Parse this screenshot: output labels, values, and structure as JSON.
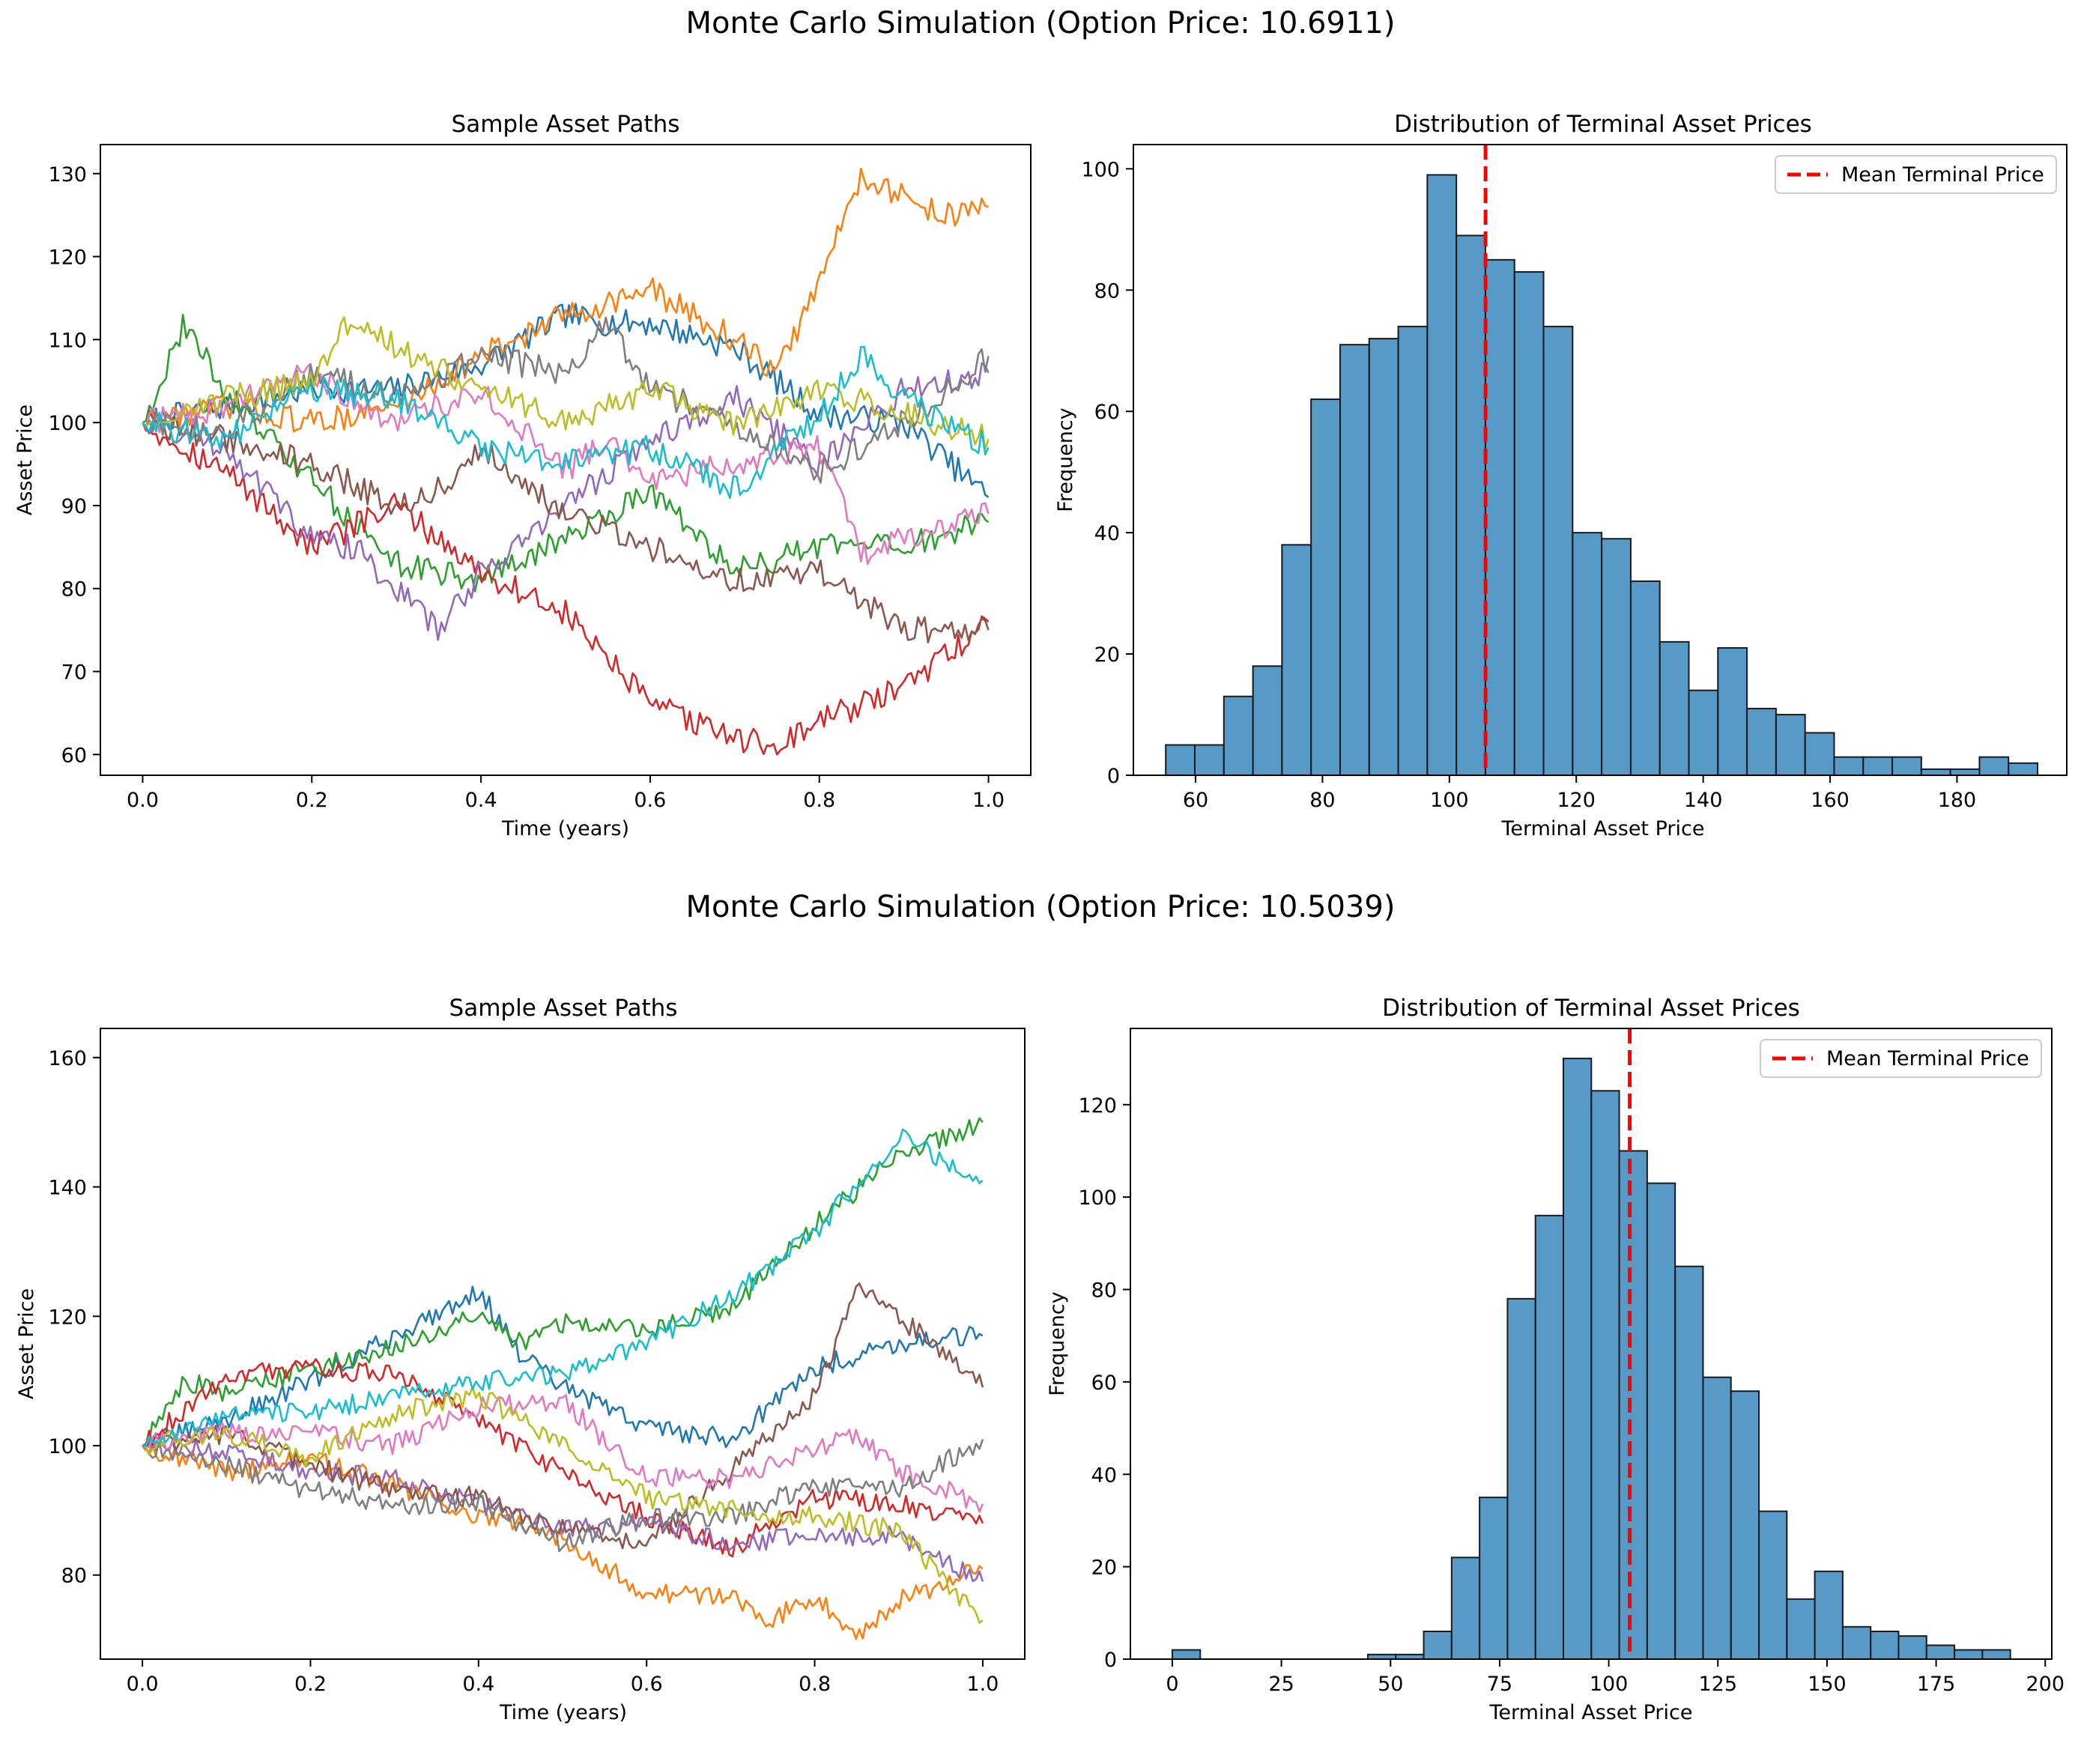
{
  "figures": [
    {
      "suptitle": "Monte Carlo Simulation (Option Price: 10.6911)",
      "paths_chart": {
        "title": "Sample Asset Paths",
        "xlabel": "Time (years)",
        "ylabel": "Asset Price",
        "xticks": [
          "0.0",
          "0.2",
          "0.4",
          "0.6",
          "0.8",
          "1.0"
        ],
        "yticks": [
          "60",
          "70",
          "80",
          "90",
          "100",
          "110",
          "120",
          "130"
        ]
      },
      "hist_chart": {
        "title": "Distribution of Terminal Asset Prices",
        "xlabel": "Terminal Asset Price",
        "ylabel": "Frequency",
        "xticks": [
          "60",
          "80",
          "100",
          "120",
          "140",
          "160",
          "180"
        ],
        "yticks": [
          "0",
          "20",
          "40",
          "60",
          "80",
          "100"
        ],
        "legend_label": "Mean Terminal Price"
      }
    },
    {
      "suptitle": "Monte Carlo Simulation (Option Price: 10.5039)",
      "paths_chart": {
        "title": "Sample Asset Paths",
        "xlabel": "Time (years)",
        "ylabel": "Asset Price",
        "xticks": [
          "0.0",
          "0.2",
          "0.4",
          "0.6",
          "0.8",
          "1.0"
        ],
        "yticks": [
          "80",
          "100",
          "120",
          "140",
          "160"
        ]
      },
      "hist_chart": {
        "title": "Distribution of Terminal Asset Prices",
        "xlabel": "Terminal Asset Price",
        "ylabel": "Frequency",
        "xticks": [
          "0",
          "25",
          "50",
          "75",
          "100",
          "125",
          "150",
          "175",
          "200"
        ],
        "yticks": [
          "0",
          "20",
          "40",
          "60",
          "80",
          "100",
          "120"
        ],
        "legend_label": "Mean Terminal Price"
      }
    }
  ],
  "chart_data": [
    {
      "type": "line",
      "title": "Sample Asset Paths",
      "xlabel": "Time (years)",
      "ylabel": "Asset Price",
      "xlim": [
        -0.05,
        1.05
      ],
      "ylim": [
        57.5,
        133.5
      ],
      "grid": false,
      "colors": [
        "#1f77b4",
        "#ff7f0e",
        "#2ca02c",
        "#d62728",
        "#9467bd",
        "#8c564b",
        "#e377c2",
        "#7f7f7f",
        "#bcbd22",
        "#17becf"
      ],
      "series": [
        {
          "x": [
            0,
            0.1,
            0.2,
            0.3,
            0.4,
            0.5,
            0.55,
            0.6,
            0.7,
            0.8,
            0.9,
            1.0
          ],
          "values": [
            100,
            102,
            104,
            104,
            107,
            113,
            112,
            112,
            109,
            101,
            100,
            91
          ]
        },
        {
          "x": [
            0,
            0.1,
            0.2,
            0.3,
            0.4,
            0.5,
            0.6,
            0.7,
            0.75,
            0.8,
            0.85,
            0.9,
            0.95,
            1.0
          ],
          "values": [
            100,
            102,
            100,
            102,
            108,
            113,
            116,
            110,
            106,
            117,
            130,
            127,
            125,
            126
          ]
        },
        {
          "x": [
            0,
            0.05,
            0.1,
            0.2,
            0.3,
            0.4,
            0.5,
            0.6,
            0.7,
            0.8,
            0.9,
            1.0
          ],
          "values": [
            100,
            112,
            103,
            93,
            83,
            81,
            86,
            92,
            82,
            85,
            85,
            88
          ]
        },
        {
          "x": [
            0,
            0.1,
            0.2,
            0.3,
            0.4,
            0.5,
            0.6,
            0.7,
            0.75,
            0.8,
            0.9,
            1.0
          ],
          "values": [
            100,
            94,
            85,
            90,
            82,
            77,
            66,
            62,
            61,
            64,
            68,
            76
          ]
        },
        {
          "x": [
            0,
            0.1,
            0.2,
            0.25,
            0.3,
            0.35,
            0.4,
            0.5,
            0.6,
            0.7,
            0.8,
            0.9,
            1.0
          ],
          "values": [
            100,
            97,
            86,
            85,
            80,
            75,
            82,
            90,
            98,
            103,
            95,
            104,
            106
          ]
        },
        {
          "x": [
            0,
            0.1,
            0.2,
            0.3,
            0.35,
            0.4,
            0.5,
            0.6,
            0.7,
            0.8,
            0.9,
            1.0
          ],
          "values": [
            100,
            98,
            95,
            90,
            92,
            97,
            89,
            85,
            81,
            82,
            75,
            75
          ]
        },
        {
          "x": [
            0,
            0.1,
            0.2,
            0.3,
            0.4,
            0.5,
            0.55,
            0.6,
            0.7,
            0.8,
            0.85,
            0.9,
            1.0
          ],
          "values": [
            100,
            102,
            106,
            100,
            104,
            94,
            98,
            93,
            95,
            97,
            84,
            86,
            89
          ]
        },
        {
          "x": [
            0,
            0.1,
            0.2,
            0.3,
            0.4,
            0.5,
            0.55,
            0.6,
            0.7,
            0.8,
            0.9,
            1.0
          ],
          "values": [
            100,
            99,
            106,
            103,
            108,
            106,
            112,
            104,
            100,
            94,
            100,
            108
          ]
        },
        {
          "x": [
            0,
            0.1,
            0.2,
            0.25,
            0.3,
            0.4,
            0.5,
            0.6,
            0.7,
            0.8,
            0.9,
            1.0
          ],
          "values": [
            100,
            103,
            105,
            113,
            109,
            104,
            100,
            104,
            100,
            104,
            101,
            98
          ]
        },
        {
          "x": [
            0,
            0.1,
            0.2,
            0.3,
            0.4,
            0.5,
            0.6,
            0.7,
            0.8,
            0.85,
            0.9,
            1.0
          ],
          "values": [
            100,
            98,
            104,
            103,
            97,
            95,
            97,
            92,
            101,
            108,
            103,
            97
          ]
        }
      ]
    },
    {
      "type": "bar",
      "title": "Distribution of Terminal Asset Prices",
      "xlabel": "Terminal Asset Price",
      "ylabel": "Frequency",
      "xlim": [
        50.2,
        197.3
      ],
      "ylim": [
        0,
        104
      ],
      "bin_start": 55.3,
      "bin_width": 4.58,
      "values": [
        5,
        5,
        13,
        18,
        38,
        62,
        71,
        72,
        74,
        99,
        89,
        85,
        83,
        74,
        40,
        39,
        32,
        22,
        14,
        21,
        11,
        10,
        7,
        3,
        3,
        3,
        1,
        1,
        3,
        2
      ],
      "bar_color": "#1f77b4",
      "mean_line": 105.7,
      "mean_line_color": "#ff0000",
      "legend": [
        "Mean Terminal Price"
      ],
      "legend_position": "top-right"
    },
    {
      "type": "line",
      "title": "Sample Asset Paths",
      "xlabel": "Time (years)",
      "ylabel": "Asset Price",
      "xlim": [
        -0.05,
        1.05
      ],
      "ylim": [
        67,
        164.5
      ],
      "grid": false,
      "colors": [
        "#1f77b4",
        "#ff7f0e",
        "#2ca02c",
        "#d62728",
        "#9467bd",
        "#8c564b",
        "#e377c2",
        "#7f7f7f",
        "#bcbd22",
        "#17becf"
      ],
      "series": [
        {
          "x": [
            0,
            0.1,
            0.2,
            0.3,
            0.4,
            0.45,
            0.5,
            0.6,
            0.7,
            0.8,
            0.9,
            1.0
          ],
          "values": [
            100,
            104,
            110,
            117,
            124,
            114,
            109,
            103,
            101,
            112,
            116,
            117
          ]
        },
        {
          "x": [
            0,
            0.1,
            0.2,
            0.3,
            0.4,
            0.5,
            0.6,
            0.7,
            0.75,
            0.8,
            0.85,
            0.9,
            1.0
          ],
          "values": [
            100,
            96,
            98,
            94,
            89,
            86,
            77,
            77,
            73,
            77,
            71,
            76,
            81
          ]
        },
        {
          "x": [
            0,
            0.05,
            0.1,
            0.2,
            0.3,
            0.4,
            0.45,
            0.5,
            0.6,
            0.7,
            0.8,
            0.9,
            1.0
          ],
          "values": [
            100,
            110,
            108,
            112,
            115,
            120,
            116,
            119,
            118,
            121,
            134,
            145,
            150
          ]
        },
        {
          "x": [
            0,
            0.1,
            0.2,
            0.3,
            0.4,
            0.5,
            0.6,
            0.7,
            0.8,
            0.9,
            1.0
          ],
          "values": [
            100,
            111,
            112,
            111,
            104,
            96,
            89,
            84,
            92,
            91,
            88
          ]
        },
        {
          "x": [
            0,
            0.1,
            0.2,
            0.3,
            0.4,
            0.5,
            0.6,
            0.7,
            0.8,
            0.9,
            1.0
          ],
          "values": [
            100,
            99,
            96,
            95,
            91,
            87,
            88,
            85,
            86,
            86,
            79
          ]
        },
        {
          "x": [
            0,
            0.1,
            0.2,
            0.3,
            0.4,
            0.5,
            0.6,
            0.7,
            0.8,
            0.85,
            0.9,
            1.0
          ],
          "values": [
            100,
            102,
            97,
            93,
            92,
            87,
            85,
            96,
            108,
            124,
            120,
            109
          ]
        },
        {
          "x": [
            0,
            0.1,
            0.2,
            0.3,
            0.4,
            0.5,
            0.6,
            0.7,
            0.8,
            0.85,
            0.9,
            1.0
          ],
          "values": [
            100,
            102,
            102,
            100,
            106,
            107,
            95,
            95,
            99,
            102,
            96,
            91
          ]
        },
        {
          "x": [
            0,
            0.1,
            0.2,
            0.3,
            0.4,
            0.5,
            0.6,
            0.7,
            0.8,
            0.9,
            1.0
          ],
          "values": [
            100,
            97,
            93,
            91,
            91,
            85,
            89,
            89,
            94,
            93,
            101
          ]
        },
        {
          "x": [
            0,
            0.1,
            0.2,
            0.3,
            0.4,
            0.5,
            0.6,
            0.7,
            0.8,
            0.9,
            1.0
          ],
          "values": [
            100,
            102,
            98,
            105,
            108,
            100,
            92,
            90,
            89,
            87,
            73
          ]
        },
        {
          "x": [
            0,
            0.1,
            0.2,
            0.3,
            0.4,
            0.5,
            0.6,
            0.7,
            0.8,
            0.9,
            1.0
          ],
          "values": [
            100,
            105,
            105,
            108,
            110,
            111,
            116,
            123,
            133,
            148,
            141
          ]
        }
      ]
    },
    {
      "type": "bar",
      "title": "Distribution of Terminal Asset Prices",
      "xlabel": "Terminal Asset Price",
      "ylabel": "Frequency",
      "xlim": [
        -9.6,
        201.5
      ],
      "ylim": [
        0,
        136.5
      ],
      "bin_start": 0.0,
      "bin_width": 6.4,
      "values": [
        2,
        0,
        0,
        0,
        0,
        0,
        0,
        1,
        1,
        6,
        22,
        35,
        78,
        96,
        130,
        123,
        110,
        103,
        85,
        61,
        58,
        32,
        13,
        19,
        7,
        6,
        5,
        3,
        2,
        2
      ],
      "bar_color": "#1f77b4",
      "mean_line": 104.8,
      "mean_line_color": "#ff0000",
      "legend": [
        "Mean Terminal Price"
      ],
      "legend_position": "top-right"
    }
  ]
}
